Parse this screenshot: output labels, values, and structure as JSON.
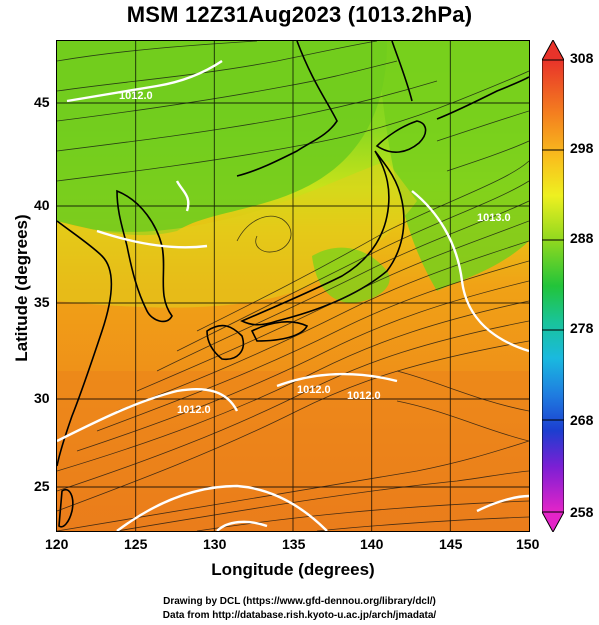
{
  "title": "MSM 12Z31Aug2023 (1013.2hPa)",
  "axes": {
    "xlabel": "Longitude (degrees)",
    "ylabel": "Latitude  (degrees)",
    "xticks": [
      "120",
      "125",
      "130",
      "135",
      "140",
      "145",
      "150"
    ],
    "yticks": [
      "25",
      "30",
      "35",
      "40",
      "45"
    ]
  },
  "colorbar": {
    "labels": [
      "308",
      "298",
      "288",
      "278",
      "268",
      "258"
    ]
  },
  "contours": {
    "labels": [
      "1012.0",
      "1012.0",
      "1012.0",
      "1012.0",
      "1013.0"
    ]
  },
  "credits": {
    "line1": "Drawing by DCL (https://www.gfd-dennou.org/library/dcl/)",
    "line2": "Data from http://database.rish.kyoto-u.ac.jp/arch/jmadata/"
  },
  "chart_data": {
    "type": "heatmap",
    "title": "MSM 12Z31Aug2023 (1013.2hPa)",
    "xlabel": "Longitude (degrees)",
    "ylabel": "Latitude  (degrees)",
    "xlim": [
      120,
      150
    ],
    "ylim": [
      22.4,
      47.6
    ],
    "color_range": [
      258,
      308
    ],
    "colorbar_ticks": [
      308,
      298,
      288,
      278,
      268,
      258
    ],
    "contour_labels": [
      "1012.0",
      "1012.0",
      "1012.0",
      "1012.0",
      "1013.0"
    ]
  }
}
